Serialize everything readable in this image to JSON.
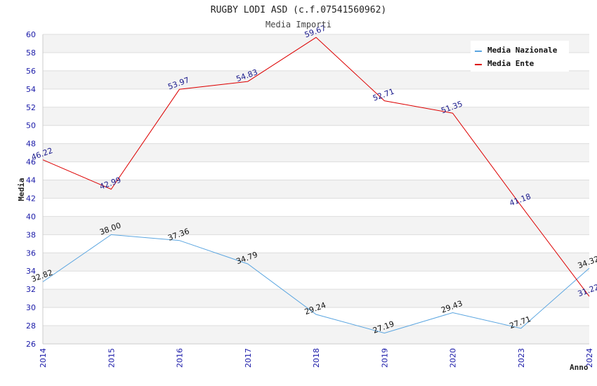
{
  "chart_data": {
    "type": "line",
    "title": "RUGBY LODI ASD (c.f.07541560962)",
    "subtitle": "Media Importi",
    "xlabel": "Anno",
    "ylabel": "Media",
    "categories": [
      "2014",
      "2015",
      "2016",
      "2017",
      "2018",
      "2019",
      "2020",
      "2023",
      "2024"
    ],
    "ylim": [
      26,
      60
    ],
    "yticks": [
      26,
      28,
      30,
      32,
      34,
      36,
      38,
      40,
      42,
      44,
      46,
      48,
      50,
      52,
      54,
      56,
      58,
      60
    ],
    "grid": true,
    "legend_position": "top-right",
    "series": [
      {
        "name": "Media Nazionale",
        "color": "#5aa5e0",
        "label_color": "#111111",
        "values": [
          32.82,
          38.0,
          37.36,
          34.79,
          29.24,
          27.19,
          29.43,
          27.71,
          34.32
        ],
        "labels": [
          "32.82",
          "38.00",
          "37.36",
          "34.79",
          "29.24",
          "27.19",
          "29.43",
          "27.71",
          "34.32"
        ]
      },
      {
        "name": "Media Ente",
        "color": "#dd0000",
        "label_color": "#1a1a8c",
        "values": [
          46.22,
          42.99,
          53.97,
          54.83,
          59.67,
          52.71,
          51.35,
          41.18,
          31.22
        ],
        "labels": [
          "46.22",
          "42.99",
          "53.97",
          "54.83",
          "59.67",
          "52.71",
          "51.35",
          "41.18",
          "31.22"
        ]
      }
    ]
  }
}
